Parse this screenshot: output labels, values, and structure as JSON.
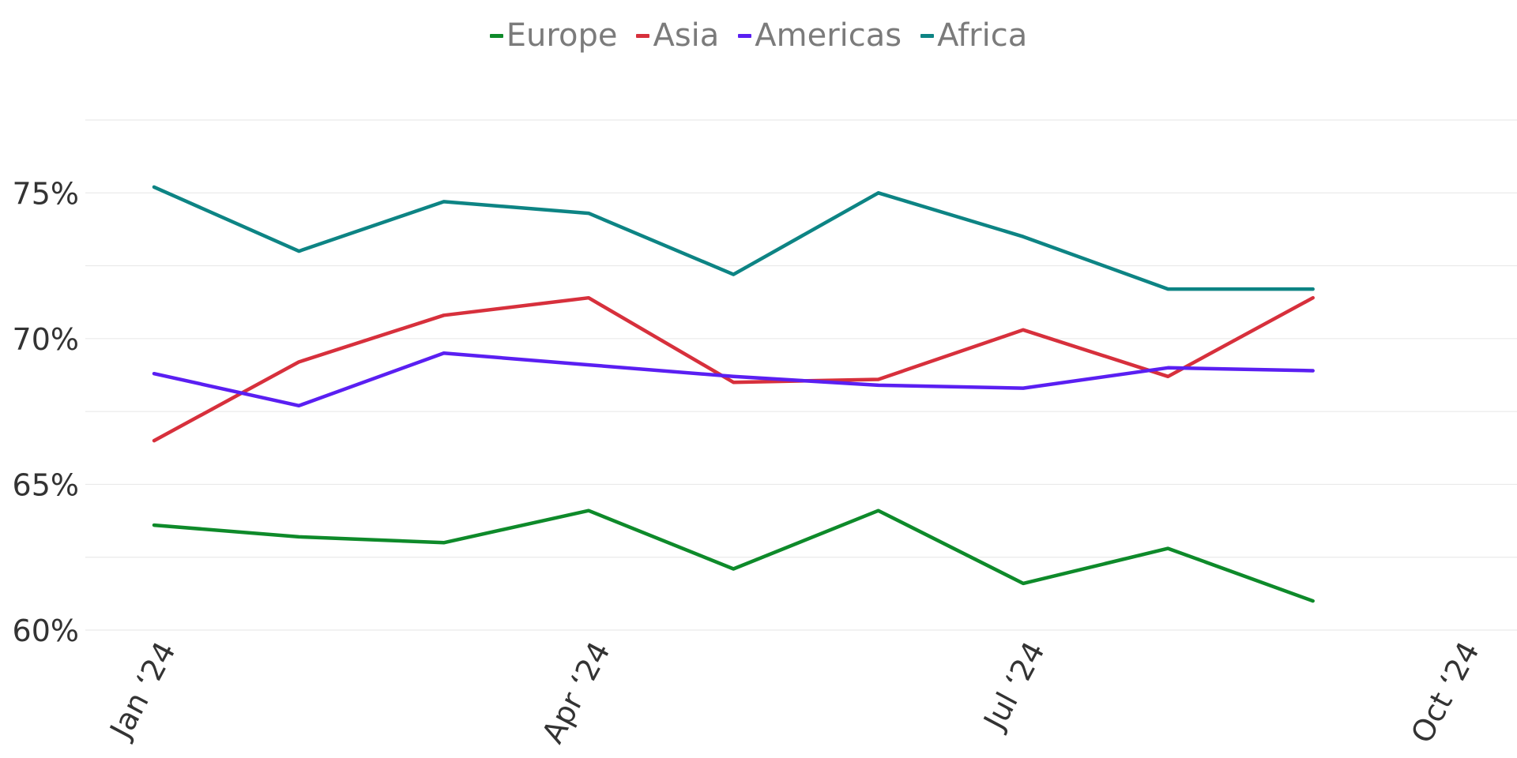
{
  "chart_data": {
    "type": "line",
    "title": "",
    "xlabel": "",
    "ylabel": "",
    "x_tick_labels": [
      {
        "label": "Jan ‘24",
        "x": "2024-01"
      },
      {
        "label": "Apr ‘24",
        "x": "2024-04"
      },
      {
        "label": "Jul ‘24",
        "x": "2024-07"
      },
      {
        "label": "Oct ‘24",
        "x": "2024-10"
      }
    ],
    "x": [
      "2024-01",
      "2024-02",
      "2024-03",
      "2024-04",
      "2024-05",
      "2024-06",
      "2024-07",
      "2024-08",
      "2024-09",
      "2024-10"
    ],
    "y_ticks": [
      60,
      65,
      70,
      75
    ],
    "y_tick_labels": [
      "60%",
      "65%",
      "70%",
      "75%"
    ],
    "ylim": [
      60,
      77.5
    ],
    "grid": true,
    "legend": "top-center",
    "series": [
      {
        "name": "Europe",
        "color": "#0e8a2a",
        "values": [
          63.6,
          63.2,
          63.0,
          64.1,
          62.1,
          64.1,
          61.6,
          62.8,
          61.0,
          null
        ]
      },
      {
        "name": "Asia",
        "color": "#d7303c",
        "values": [
          66.5,
          69.2,
          70.8,
          71.4,
          68.5,
          68.6,
          70.3,
          68.7,
          71.4,
          null
        ]
      },
      {
        "name": "Americas",
        "color": "#5a1ff2",
        "values": [
          68.8,
          67.7,
          69.5,
          69.1,
          68.7,
          68.4,
          68.3,
          69.0,
          68.9,
          null
        ]
      },
      {
        "name": "Africa",
        "color": "#0d8484",
        "values": [
          75.2,
          73.0,
          74.7,
          74.3,
          72.2,
          75.0,
          73.5,
          71.7,
          71.7,
          null
        ]
      }
    ]
  }
}
